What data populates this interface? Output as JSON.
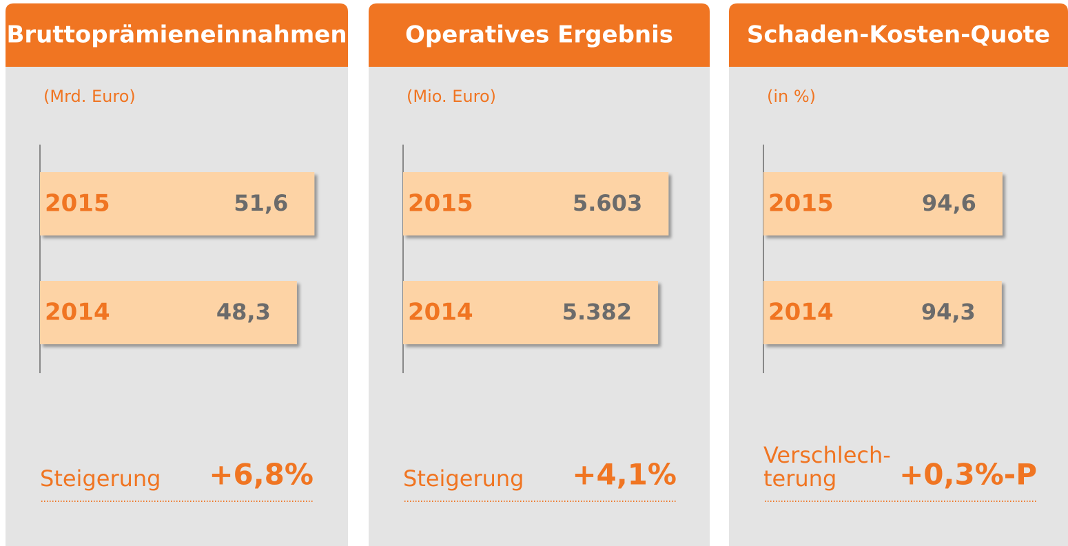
{
  "chart_data": [
    {
      "type": "bar",
      "orientation": "horizontal",
      "title": "Bruttoprämieneinnahmen",
      "subtitle": "(Mrd. Euro)",
      "categories": [
        "2015",
        "2014"
      ],
      "values": [
        51.6,
        48.3
      ],
      "value_labels": [
        "51,6",
        "48,3"
      ],
      "xlim": [
        0,
        57
      ],
      "color": "#fdd3a5",
      "annotation_label": "Steigerung",
      "annotation_value": "+6,8%"
    },
    {
      "type": "bar",
      "orientation": "horizontal",
      "title": "Operatives Ergebnis",
      "subtitle": "(Mio. Euro)",
      "categories": [
        "2015",
        "2014"
      ],
      "values": [
        5603,
        5382
      ],
      "value_labels": [
        "5.603",
        "5.382"
      ],
      "xlim": [
        0,
        6400
      ],
      "color": "#fdd3a5",
      "annotation_label": "Steigerung",
      "annotation_value": "+4,1%"
    },
    {
      "type": "bar",
      "orientation": "horizontal",
      "title": "Schaden-Kosten-Quote",
      "subtitle": "(in %)",
      "categories": [
        "2015",
        "2014"
      ],
      "values": [
        94.6,
        94.3
      ],
      "value_labels": [
        "94,6",
        "94,3"
      ],
      "xlim": [
        0,
        120
      ],
      "color": "#fdd3a5",
      "annotation_label": "Verschlech-\nterung",
      "annotation_value": "+0,3%-P"
    }
  ]
}
